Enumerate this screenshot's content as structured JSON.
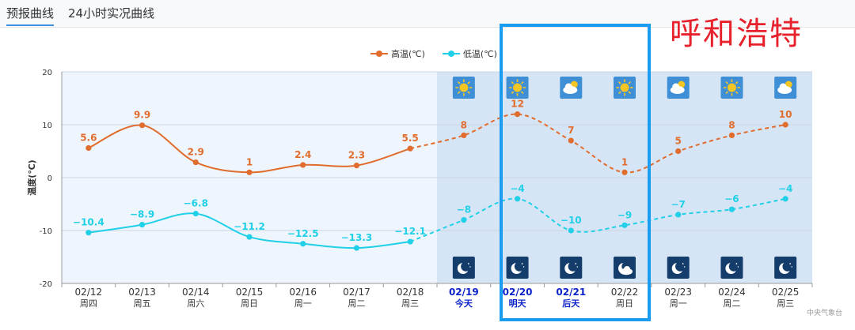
{
  "tabs": [
    {
      "label": "预报曲线",
      "active": true
    },
    {
      "label": "24小时实况曲线",
      "active": false
    }
  ],
  "city_overlay": "呼和浩特",
  "source": "中央气象台",
  "colors": {
    "high": "#e06c2d",
    "low": "#1fd0e8",
    "highlight_box": "#1a9cf0"
  },
  "chart_data": {
    "type": "line",
    "ylabel": "温度(℃)",
    "ylim": [
      -20,
      20
    ],
    "yticks": [
      20,
      10,
      0,
      -10,
      -20
    ],
    "grid": true,
    "legend": "top-center",
    "categories": [
      {
        "date": "02/12",
        "day": "周四",
        "forecast": false
      },
      {
        "date": "02/13",
        "day": "周五",
        "forecast": false
      },
      {
        "date": "02/14",
        "day": "周六",
        "forecast": false
      },
      {
        "date": "02/15",
        "day": "周日",
        "forecast": false
      },
      {
        "date": "02/16",
        "day": "周一",
        "forecast": false
      },
      {
        "date": "02/17",
        "day": "周二",
        "forecast": false
      },
      {
        "date": "02/18",
        "day": "周三",
        "forecast": false
      },
      {
        "date": "02/19",
        "day": "今天",
        "forecast": true,
        "emphasis": true,
        "day_icon": "sunny-icon",
        "night_icon": "moon-icon"
      },
      {
        "date": "02/20",
        "day": "明天",
        "forecast": true,
        "emphasis": true,
        "day_icon": "sunny-icon",
        "night_icon": "moon-icon"
      },
      {
        "date": "02/21",
        "day": "后天",
        "forecast": true,
        "emphasis": true,
        "day_icon": "cloudy-sun-icon",
        "night_icon": "moon-icon"
      },
      {
        "date": "02/22",
        "day": "周日",
        "forecast": true,
        "emphasis": false,
        "day_icon": "sunny-icon",
        "night_icon": "cloudy-moon-icon"
      },
      {
        "date": "02/23",
        "day": "周一",
        "forecast": true,
        "emphasis": false,
        "day_icon": "cloudy-sun-icon",
        "night_icon": "moon-icon"
      },
      {
        "date": "02/24",
        "day": "周二",
        "forecast": true,
        "emphasis": false,
        "day_icon": "sunny-icon",
        "night_icon": "moon-icon"
      },
      {
        "date": "02/25",
        "day": "周三",
        "forecast": true,
        "emphasis": false,
        "day_icon": "cloudy-sun-icon",
        "night_icon": "moon-icon"
      }
    ],
    "series": [
      {
        "name": "高温(℃)",
        "key": "high",
        "values": [
          5.6,
          9.9,
          2.9,
          1,
          2.4,
          2.3,
          5.5,
          8,
          12,
          7,
          1,
          5,
          8,
          10
        ],
        "labels": [
          "5.6",
          "9.9",
          "2.9",
          "1",
          "2.4",
          "2.3",
          "5.5",
          "8",
          "12",
          "7",
          "1",
          "5",
          "8",
          "10"
        ]
      },
      {
        "name": "低温(℃)",
        "key": "low",
        "values": [
          -10.4,
          -8.9,
          -6.8,
          -11.2,
          -12.5,
          -13.3,
          -12.1,
          -8,
          -4,
          -10,
          -9,
          -7,
          -6,
          -4
        ],
        "labels": [
          "−10.4",
          "−8.9",
          "−6.8",
          "−11.2",
          "−12.5",
          "−13.3",
          "−12.1",
          "−8",
          "−4",
          "−10",
          "−9",
          "−7",
          "−6",
          "−4"
        ]
      }
    ]
  }
}
